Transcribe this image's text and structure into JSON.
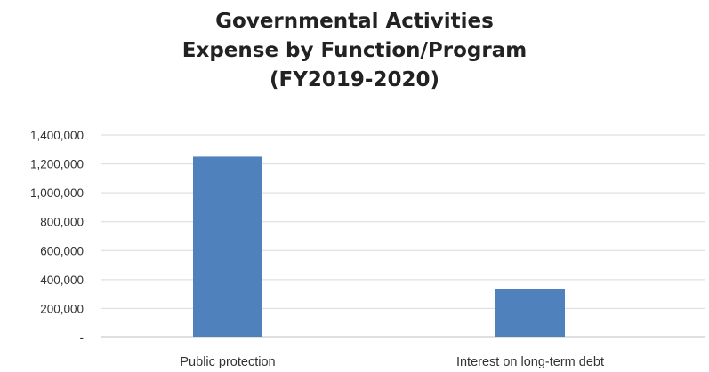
{
  "chart_data": {
    "type": "bar",
    "title": [
      "Governmental Activities",
      "Expense by Function/Program",
      "(FY2019-2020)"
    ],
    "categories": [
      "Public protection",
      "Interest on long-term debt"
    ],
    "values": [
      1250000,
      335000
    ],
    "yticks": [
      "-",
      "200,000",
      "400,000",
      "600,000",
      "800,000",
      "1,000,000",
      "1,200,000",
      "1,400,000"
    ],
    "ylim": [
      0,
      1400000
    ],
    "grid": true,
    "legend": "none",
    "bar_color": "#4f81bd",
    "grid_color": "#d9d9d9"
  }
}
